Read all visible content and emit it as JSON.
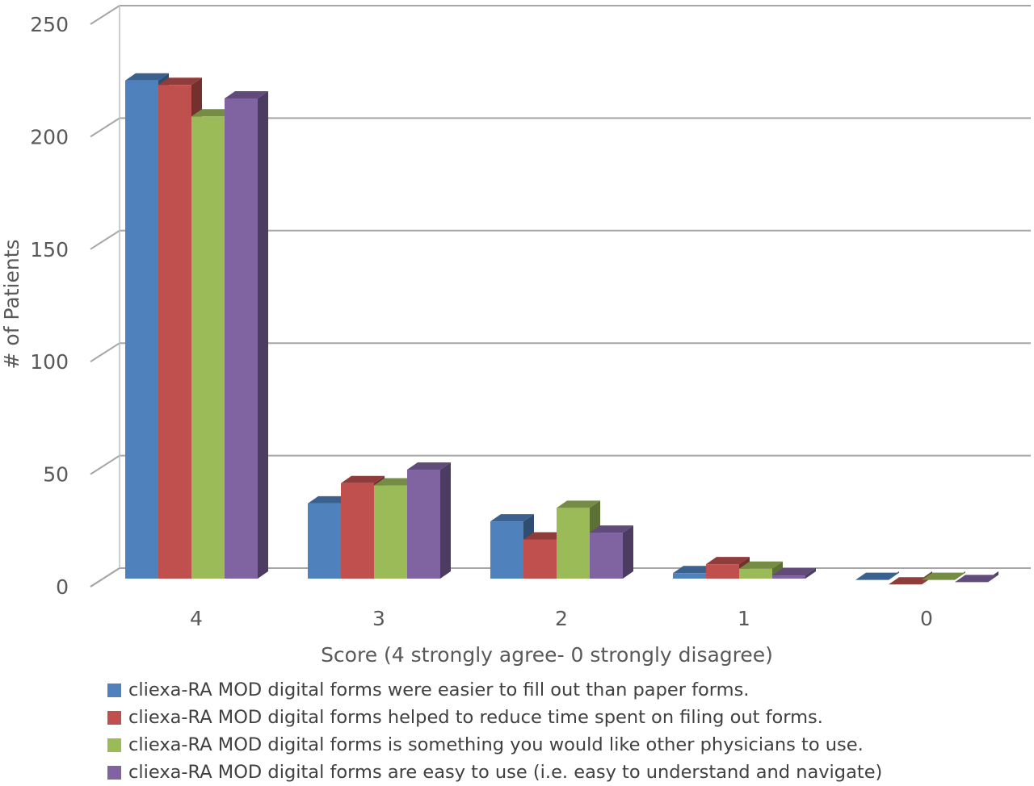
{
  "chart_data": {
    "type": "bar",
    "categories": [
      "4",
      "3",
      "2",
      "1",
      "0"
    ],
    "series": [
      {
        "name": "cliexa-RA MOD digital forms were easier to fill out than paper forms.",
        "color": "#4f81bd",
        "values": [
          225,
          37,
          29,
          6,
          3
        ]
      },
      {
        "name": "cliexa-RA MOD digital forms helped to reduce time spent on filing out forms.",
        "color": "#c0504d",
        "values": [
          223,
          46,
          21,
          10,
          1
        ]
      },
      {
        "name": "cliexa-RA MOD digital forms is something you would like other physicians to use.",
        "color": "#9bbb59",
        "values": [
          209,
          45,
          35,
          8,
          3
        ]
      },
      {
        "name": "cliexa-RA MOD digital forms are easy to use (i.e. easy to understand and navigate)",
        "color": "#8064a2",
        "values": [
          217,
          52,
          24,
          5,
          2
        ]
      }
    ],
    "yticks": [
      "0",
      "50",
      "100",
      "150",
      "200",
      "250"
    ],
    "ylim": [
      0,
      250
    ],
    "xlabel": "Score (4 strongly agree- 0 strongly disagree)",
    "ylabel": "# of Patients",
    "grid": true,
    "legend_position": "bottom"
  }
}
